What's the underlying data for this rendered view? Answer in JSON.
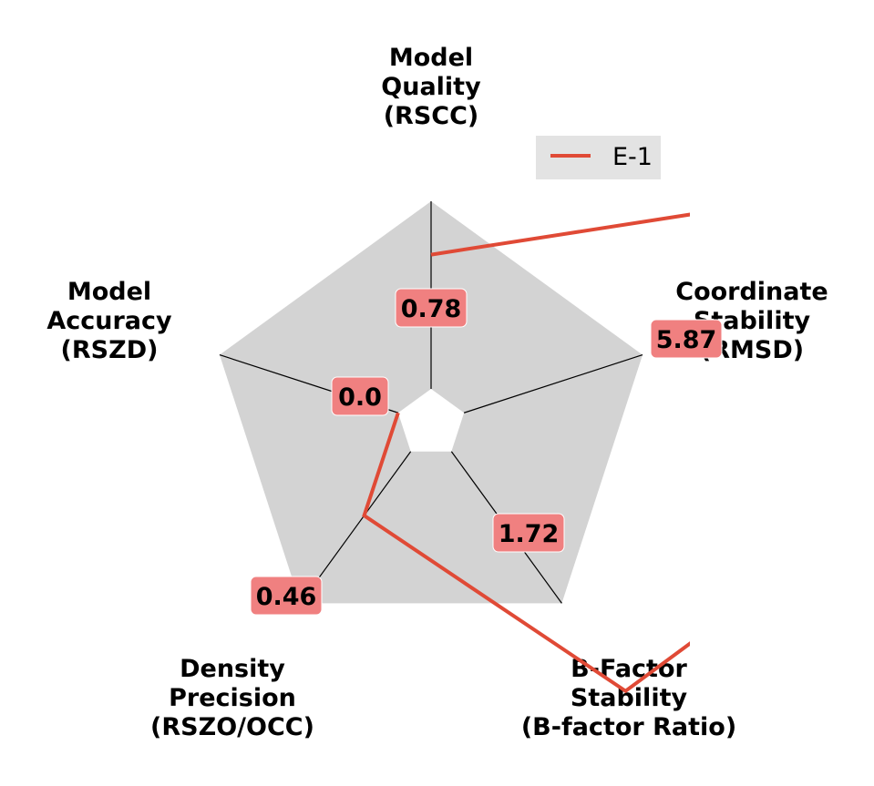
{
  "chart_data": {
    "type": "radar",
    "axes": [
      [
        "Model",
        "Quality",
        "(RSCC)"
      ],
      [
        "Coordinate",
        "Stability",
        "(RMSD)"
      ],
      [
        "B-Factor",
        "Stability",
        "(B-factor Ratio)"
      ],
      [
        "Density",
        "Precision",
        "(RSZO/OCC)"
      ],
      [
        "Model",
        "Accuracy",
        "(RSZD)"
      ]
    ],
    "series": [
      {
        "name": "E-1",
        "color": "#e04a36",
        "values": [
          0.78,
          5.87,
          1.72,
          0.46,
          0.0
        ],
        "value_labels": [
          "0.78",
          "5.87",
          "1.72",
          "0.46",
          "0.0"
        ]
      }
    ],
    "legend": {
      "placement": "top-right",
      "entries": [
        "E-1"
      ]
    },
    "colors": {
      "background_fill": "#d3d3d3",
      "center_hole": "#ffffff",
      "label_box": "#f08080",
      "spoke": "#000000"
    }
  }
}
